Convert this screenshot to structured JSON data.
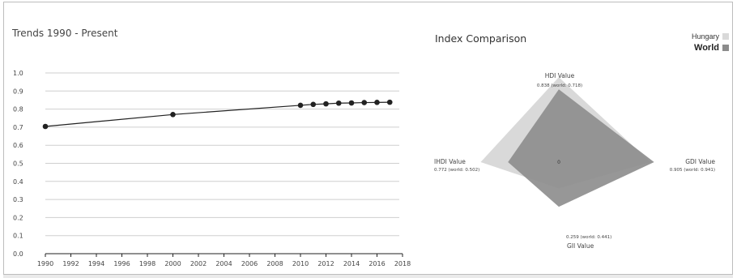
{
  "trend": {
    "title": "Trends 1990 - Present",
    "chart_data": {
      "type": "line",
      "x": [
        1990,
        2000,
        2010,
        2011,
        2012,
        2013,
        2014,
        2015,
        2016,
        2017
      ],
      "series": [
        {
          "values": [
            0.704,
            0.77,
            0.821,
            0.826,
            0.829,
            0.833,
            0.834,
            0.836,
            0.837,
            0.838
          ]
        }
      ],
      "xlim": [
        1990,
        2018
      ],
      "ylim": [
        0.0,
        1.0
      ],
      "xticks": [
        "1990",
        "1992",
        "1994",
        "1996",
        "1998",
        "2000",
        "2002",
        "2004",
        "2006",
        "2008",
        "2010",
        "2012",
        "2014",
        "2016",
        "2018"
      ],
      "yticks": [
        "0.0",
        "0.1",
        "0.2",
        "0.3",
        "0.4",
        "0.5",
        "0.6",
        "0.7",
        "0.8",
        "0.9",
        "1.0"
      ],
      "grid": true,
      "line_color": "#222222"
    }
  },
  "radar": {
    "title": "Index Comparison",
    "legend": {
      "hungary": "Hungary",
      "world": "World"
    },
    "center_label": "0",
    "chart_data": {
      "type": "radar",
      "axes": [
        "HDI Value",
        "GDI Value",
        "GII Value",
        "IHDI Value"
      ],
      "series": [
        {
          "name": "Hungary",
          "values": [
            0.838,
            0.905,
            0.259,
            0.772
          ],
          "color": "#d9d9d9"
        },
        {
          "name": "World",
          "values": [
            0.718,
            0.941,
            0.441,
            0.502
          ],
          "color": "#8c8c8c"
        }
      ],
      "axis_labels": {
        "hdi": {
          "name": "HDI Value",
          "value": "0.838 (world: 0.718)"
        },
        "gdi": {
          "name": "GDI Value",
          "value": "0.905 (world: 0.941)"
        },
        "gii": {
          "name": "GII Value",
          "value": "0.259 (world: 0.441)"
        },
        "ihdi": {
          "name": "IHDI Value",
          "value": "0.772 (world: 0.502)"
        }
      }
    }
  }
}
